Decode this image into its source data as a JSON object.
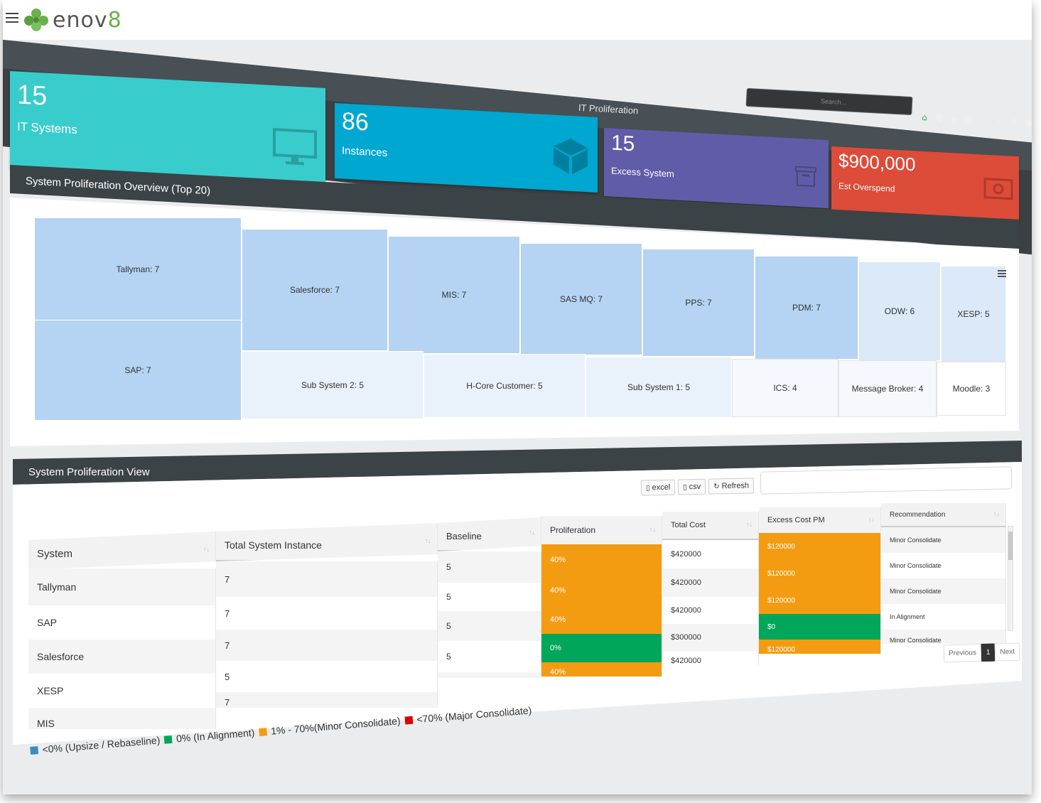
{
  "brand": {
    "logo_text": "enov",
    "logo_suffix": "8"
  },
  "header": {
    "title": "IT Proliferation",
    "search_placeholder": "Search..."
  },
  "nav_icons": [
    "home-icon",
    "star-icon",
    "paper-plane-icon",
    "clapperboard-icon",
    "shield-icon",
    "question-icon",
    "gear-icon",
    "user-icon"
  ],
  "tiles": [
    {
      "value": "15",
      "label": "IT Systems",
      "icon": "monitor-icon",
      "color": "#39cccc"
    },
    {
      "value": "86",
      "label": "Instances",
      "icon": "cube-icon",
      "color": "#00a7d0"
    },
    {
      "value": "15",
      "label": "Excess System",
      "icon": "archive-icon",
      "color": "#605ca8"
    },
    {
      "value": "$900,000",
      "label": "Est Overspend",
      "icon": "money-icon",
      "color": "#dd4b39"
    }
  ],
  "overview_panel": {
    "title": "System Proliferation Overview (Top 20)"
  },
  "treemap": [
    {
      "label": "Tallyman: 7"
    },
    {
      "label": "SAP: 7"
    },
    {
      "label": "Salesforce: 7"
    },
    {
      "label": "MIS: 7"
    },
    {
      "label": "SAS MQ: 7"
    },
    {
      "label": "PPS: 7"
    },
    {
      "label": "PDM: 7"
    },
    {
      "label": "ODW: 6"
    },
    {
      "label": "XESP: 5"
    },
    {
      "label": "Sub System 2: 5"
    },
    {
      "label": "H-Core Customer: 5"
    },
    {
      "label": "Sub System 1: 5"
    },
    {
      "label": "ICS: 4"
    },
    {
      "label": "Message Broker: 4"
    },
    {
      "label": "Moodle: 3"
    }
  ],
  "view_panel": {
    "title": "System Proliferation View",
    "buttons": {
      "excel": "excel",
      "csv": "csv",
      "refresh": "Refresh"
    }
  },
  "table_left": {
    "columns": [
      "System",
      "Total System Instance",
      "Baseline"
    ],
    "rows": [
      [
        "Tallyman",
        "7",
        "5"
      ],
      [
        "SAP",
        "7",
        "5"
      ],
      [
        "Salesforce",
        "7",
        "5"
      ],
      [
        "XESP",
        "5",
        "5"
      ],
      [
        "MIS",
        "7",
        ""
      ]
    ]
  },
  "table_right": {
    "columns": [
      "Proliferation",
      "Total Cost",
      "Excess Cost PM",
      "Recommendation"
    ],
    "rows": [
      [
        "40%",
        "$420000",
        "$120000",
        "Minor Consolidate"
      ],
      [
        "40%",
        "$420000",
        "$120000",
        "Minor Consolidate"
      ],
      [
        "40%",
        "$420000",
        "$120000",
        "Minor Consolidate"
      ],
      [
        "0%",
        "$300000",
        "$0",
        "In Alignment"
      ],
      [
        "40%",
        "$420000",
        "$120000",
        "Minor Consolidate"
      ]
    ]
  },
  "pagination": {
    "previous": "Previous",
    "current": "1",
    "next": "Next"
  },
  "legend": [
    {
      "text": "<0% (Upsize / Rebaseline)",
      "color": "#3c8dbc"
    },
    {
      "text": "0% (In Alignment)",
      "color": "#00a65a"
    },
    {
      "text": "1% - 70%(Minor Consolidate)",
      "color": "#f39c12"
    },
    {
      "text": "<70% (Major Consolidate)",
      "color": "#dd0000"
    }
  ]
}
